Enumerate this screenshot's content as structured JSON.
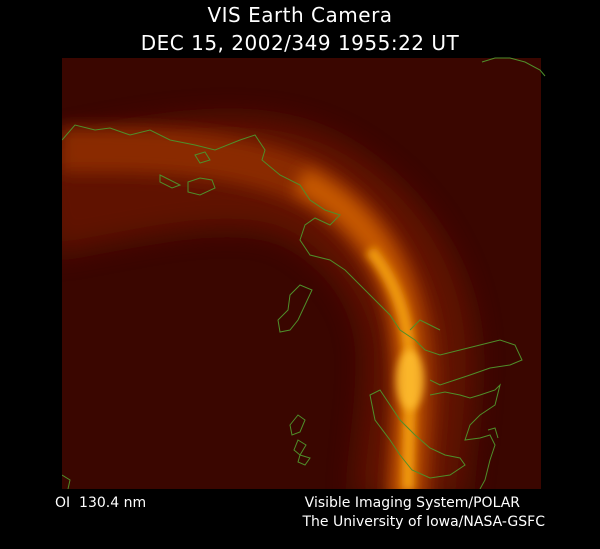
{
  "header": {
    "title": "VIS Earth Camera",
    "subtitle": "DEC 15, 2002/349 1955:22 UT"
  },
  "footer": {
    "wavelength": "OI  130.4 nm",
    "credit": [
      "Visible Imaging System/POLAR",
      "The University of Iowa/NASA-GSFC"
    ]
  }
}
